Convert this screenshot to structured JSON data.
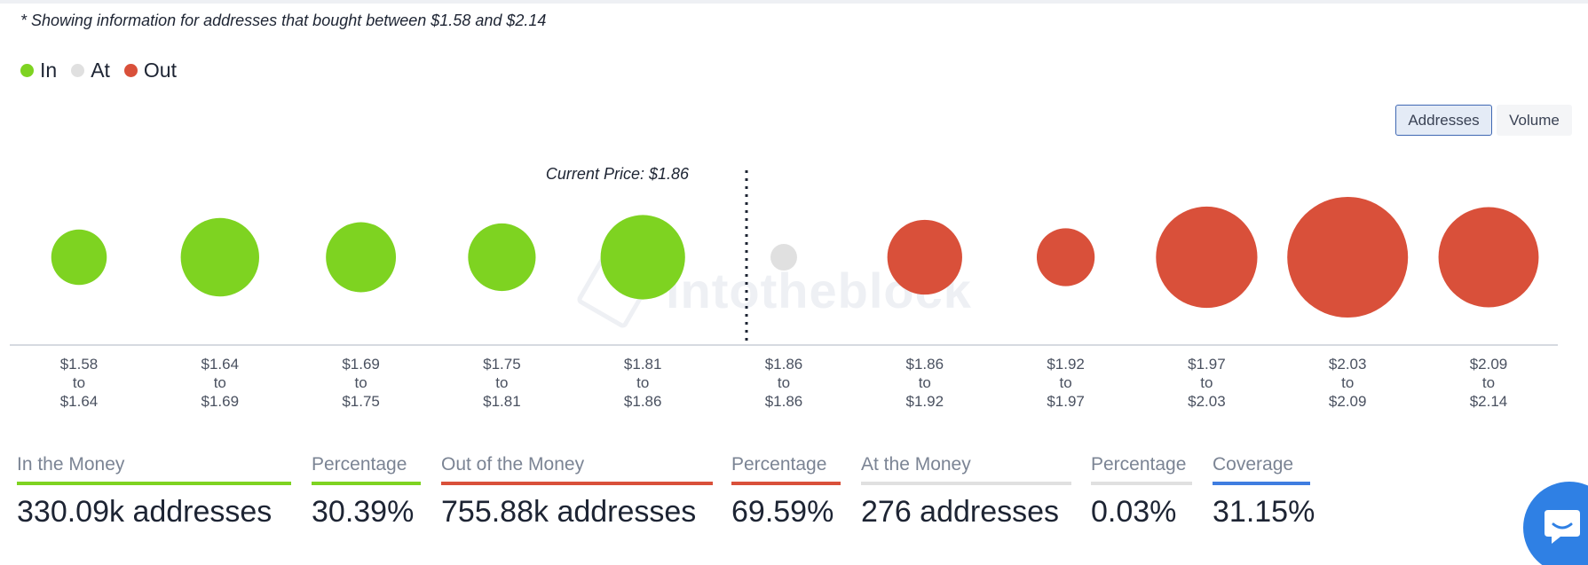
{
  "note": "* Showing information for addresses that bought between $1.58 and $2.14",
  "legend": [
    {
      "label": "In",
      "color": "#7ed321"
    },
    {
      "label": "At",
      "color": "#e0e0e0"
    },
    {
      "label": "Out",
      "color": "#d9503a"
    }
  ],
  "toggle": {
    "addresses": "Addresses",
    "volume": "Volume",
    "active": "Addresses"
  },
  "watermark": "intotheblock",
  "chart_data": {
    "type": "scatter",
    "title": "",
    "current_price_label": "Current Price: $1.86",
    "current_price": 1.86,
    "categories": [
      [
        "$1.58",
        "to",
        "$1.64"
      ],
      [
        "$1.64",
        "to",
        "$1.69"
      ],
      [
        "$1.69",
        "to",
        "$1.75"
      ],
      [
        "$1.75",
        "to",
        "$1.81"
      ],
      [
        "$1.81",
        "to",
        "$1.86"
      ],
      [
        "$1.86",
        "to",
        "$1.86"
      ],
      [
        "$1.86",
        "to",
        "$1.92"
      ],
      [
        "$1.92",
        "to",
        "$1.97"
      ],
      [
        "$1.97",
        "to",
        "$2.03"
      ],
      [
        "$2.03",
        "to",
        "$2.09"
      ],
      [
        "$2.09",
        "to",
        "$2.14"
      ]
    ],
    "status": [
      "in",
      "in",
      "in",
      "in",
      "in",
      "at",
      "out",
      "out",
      "out",
      "out",
      "out"
    ],
    "relative_size": [
      0.46,
      0.65,
      0.58,
      0.56,
      0.7,
      0.22,
      0.62,
      0.48,
      0.84,
      1.0,
      0.83
    ],
    "colors": {
      "in": "#7ed321",
      "at": "#e0e0e0",
      "out": "#d9503a"
    }
  },
  "stats": [
    {
      "label": "In the Money",
      "value": "330.09k addresses",
      "color": "#7ed321"
    },
    {
      "label": "Percentage",
      "value": "30.39%",
      "color": "#7ed321"
    },
    {
      "label": "Out of the Money",
      "value": "755.88k addresses",
      "color": "#d9503a"
    },
    {
      "label": "Percentage",
      "value": "69.59%",
      "color": "#d9503a"
    },
    {
      "label": "At the Money",
      "value": "276 addresses",
      "color": "#e0e0e0"
    },
    {
      "label": "Percentage",
      "value": "0.03%",
      "color": "#e0e0e0"
    },
    {
      "label": "Coverage",
      "value": "31.15%",
      "color": "#3f7de0"
    }
  ]
}
